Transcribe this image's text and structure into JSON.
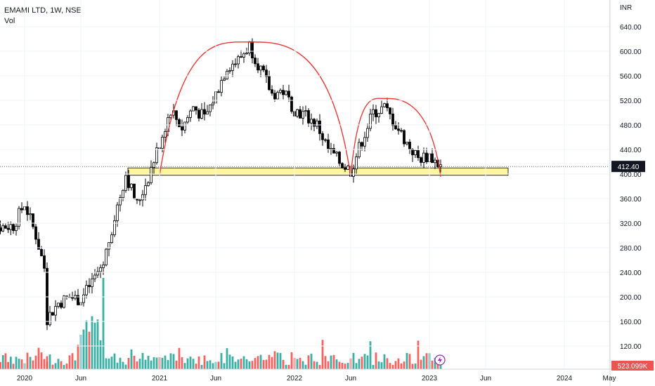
{
  "header": {
    "title": "EMAMI LTD, 1W, NSE",
    "volume_label": "Vol"
  },
  "colors": {
    "up": "#26a69a",
    "down": "#ef5350",
    "candle": "#000000",
    "arc": "#e53935",
    "zone_fill": "#fff59d",
    "zone_border": "#000000",
    "price_badge": "#131722",
    "vol_badge": "#ef5350",
    "flash": "#9c27b0"
  },
  "chart_data": {
    "type": "candlestick",
    "currency": "INR",
    "timeframe": "1W",
    "last_price": "412.40",
    "last_volume": "523.099K",
    "y_range": [
      84,
      660
    ],
    "y_ticks": [
      {
        "value": 640,
        "label": "640.00"
      },
      {
        "value": 600,
        "label": "600.00"
      },
      {
        "value": 560,
        "label": "560.00"
      },
      {
        "value": 520,
        "label": "520.00"
      },
      {
        "value": 480,
        "label": "480.00"
      },
      {
        "value": 440,
        "label": "440.00"
      },
      {
        "value": 400,
        "label": "400.00"
      },
      {
        "value": 360,
        "label": "360.00"
      },
      {
        "value": 320,
        "label": "320.00"
      },
      {
        "value": 280,
        "label": "280.00"
      },
      {
        "value": 240,
        "label": "240.00"
      },
      {
        "value": 200,
        "label": "200.00"
      },
      {
        "value": 160,
        "label": "160.00"
      },
      {
        "value": 120,
        "label": "120.00"
      }
    ],
    "x_ticks": [
      {
        "label": "2020",
        "date": "2020-01"
      },
      {
        "label": "Jun",
        "date": "2020-06"
      },
      {
        "label": "2021",
        "date": "2021-01"
      },
      {
        "label": "Jun",
        "date": "2021-06"
      },
      {
        "label": "2022",
        "date": "2022-01"
      },
      {
        "label": "Jun",
        "date": "2022-06"
      },
      {
        "label": "2023",
        "date": "2023-01"
      },
      {
        "label": "Jun",
        "date": "2023-06"
      },
      {
        "label": "2024",
        "date": "2024-01"
      },
      {
        "label": "May",
        "date": "2024-05"
      }
    ],
    "price_anchors": [
      [
        "2019-09",
        312
      ],
      [
        "2019-12",
        316
      ],
      [
        "2020-01",
        352
      ],
      [
        "2020-02",
        300
      ],
      [
        "2020-03",
        230
      ],
      [
        "2020-03",
        165
      ],
      [
        "2020-04",
        190
      ],
      [
        "2020-05",
        200
      ],
      [
        "2020-06",
        195
      ],
      [
        "2020-07",
        225
      ],
      [
        "2020-08",
        255
      ],
      [
        "2020-09",
        330
      ],
      [
        "2020-10",
        400
      ],
      [
        "2020-11",
        350
      ],
      [
        "2020-12",
        395
      ],
      [
        "2021-01",
        450
      ],
      [
        "2021-02",
        505
      ],
      [
        "2021-03",
        475
      ],
      [
        "2021-04",
        510
      ],
      [
        "2021-05",
        490
      ],
      [
        "2021-06",
        530
      ],
      [
        "2021-07",
        575
      ],
      [
        "2021-08",
        585
      ],
      [
        "2021-09",
        610
      ],
      [
        "2021-10",
        570
      ],
      [
        "2021-11",
        530
      ],
      [
        "2021-12",
        535
      ],
      [
        "2022-01",
        505
      ],
      [
        "2022-02",
        495
      ],
      [
        "2022-03",
        480
      ],
      [
        "2022-04",
        440
      ],
      [
        "2022-05",
        420
      ],
      [
        "2022-06",
        405
      ],
      [
        "2022-07",
        455
      ],
      [
        "2022-08",
        500
      ],
      [
        "2022-09",
        508
      ],
      [
        "2022-10",
        480
      ],
      [
        "2022-11",
        450
      ],
      [
        "2022-12",
        425
      ],
      [
        "2023-01",
        430
      ],
      [
        "2023-02",
        412
      ]
    ],
    "support_zone": {
      "low": 398,
      "high": 410,
      "from": "2020-10",
      "to": "2023-08"
    },
    "arcs": [
      {
        "from": "2021-01",
        "peak": "2021-09",
        "to": "2022-06",
        "peak_value": 615,
        "base_value": 398
      },
      {
        "from": "2022-06",
        "peak": "2022-09",
        "to": "2023-02",
        "peak_value": 523,
        "base_value": 398
      }
    ]
  }
}
